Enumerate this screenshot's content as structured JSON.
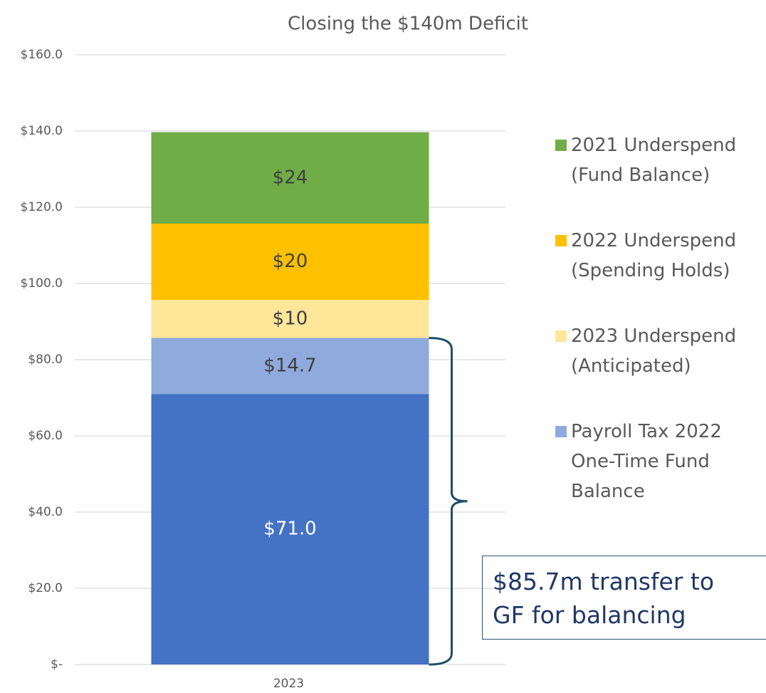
{
  "chart_data": {
    "type": "stacked_bar",
    "title": "Closing the $140m Deficit",
    "categories": [
      "2023"
    ],
    "series": [
      {
        "color": "#4472c4",
        "values": [
          71.0
        ],
        "value_labels": [
          "$71.0"
        ]
      },
      {
        "name": "Payroll Tax 2022 One-Time Fund Balance",
        "color": "#8faadc",
        "values": [
          14.7
        ],
        "value_labels": [
          "$14.7"
        ]
      },
      {
        "name": "2023 Underspend (Anticipated)",
        "color": "#ffe699",
        "values": [
          10
        ],
        "value_labels": [
          "$10"
        ]
      },
      {
        "name": "2022 Underspend (Spending Holds)",
        "color": "#ffc000",
        "values": [
          20
        ],
        "value_labels": [
          "$20"
        ]
      },
      {
        "name": "2021 Underspend (Fund Balance)",
        "color": "#70ad47",
        "values": [
          24
        ],
        "value_labels": [
          "$24"
        ]
      }
    ],
    "ylim": [
      0,
      160
    ],
    "yticks": [
      {
        "value": 0,
        "label": "$-"
      },
      {
        "value": 20,
        "label": "$20.0"
      },
      {
        "value": 40,
        "label": "$40.0"
      },
      {
        "value": 60,
        "label": "$60.0"
      },
      {
        "value": 80,
        "label": "$80.0"
      },
      {
        "value": 100,
        "label": "$100.0"
      },
      {
        "value": 120,
        "label": "$120.0"
      },
      {
        "value": 140,
        "label": "$140.0"
      },
      {
        "value": 160,
        "label": "$160.0"
      }
    ],
    "grid": true,
    "legend": "right",
    "annotation": [
      "$85.7m transfer to",
      "GF for balancing"
    ]
  }
}
